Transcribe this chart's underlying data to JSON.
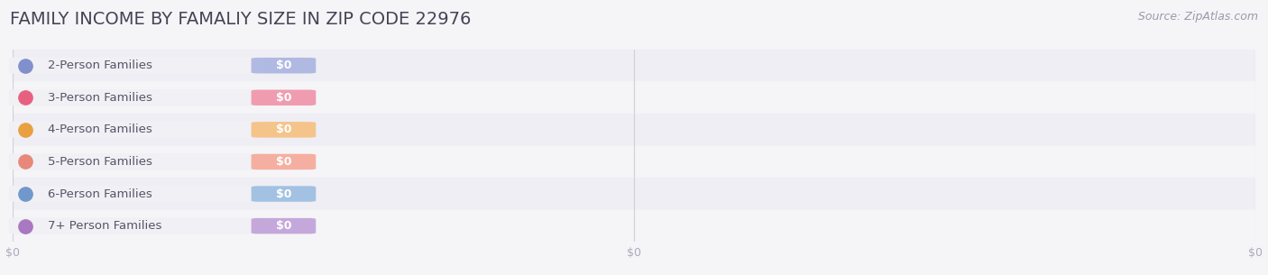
{
  "title": "FAMILY INCOME BY FAMALIY SIZE IN ZIP CODE 22976",
  "source": "Source: ZipAtlas.com",
  "categories": [
    "2-Person Families",
    "3-Person Families",
    "4-Person Families",
    "5-Person Families",
    "6-Person Families",
    "7+ Person Families"
  ],
  "values": [
    0,
    0,
    0,
    0,
    0,
    0
  ],
  "bar_colors": [
    "#aab4e0",
    "#f093a8",
    "#f5c080",
    "#f5a898",
    "#9bbde0",
    "#c0a0d8"
  ],
  "dot_colors": [
    "#8090cc",
    "#e86080",
    "#e8a040",
    "#e88878",
    "#7098cc",
    "#a878c0"
  ],
  "row_colors": [
    "#eeeef4",
    "#f5f5f8",
    "#eeeef4",
    "#f5f5f8",
    "#eeeef4",
    "#f5f5f8"
  ],
  "bg_color": "#f5f5f8",
  "label_pill_color": "#f0f0f5",
  "title_color": "#444455",
  "source_color": "#999aaa",
  "tick_color": "#aaaabc",
  "title_fontsize": 14,
  "source_fontsize": 9,
  "label_fontsize": 9.5,
  "value_fontsize": 9,
  "tick_fontsize": 9
}
